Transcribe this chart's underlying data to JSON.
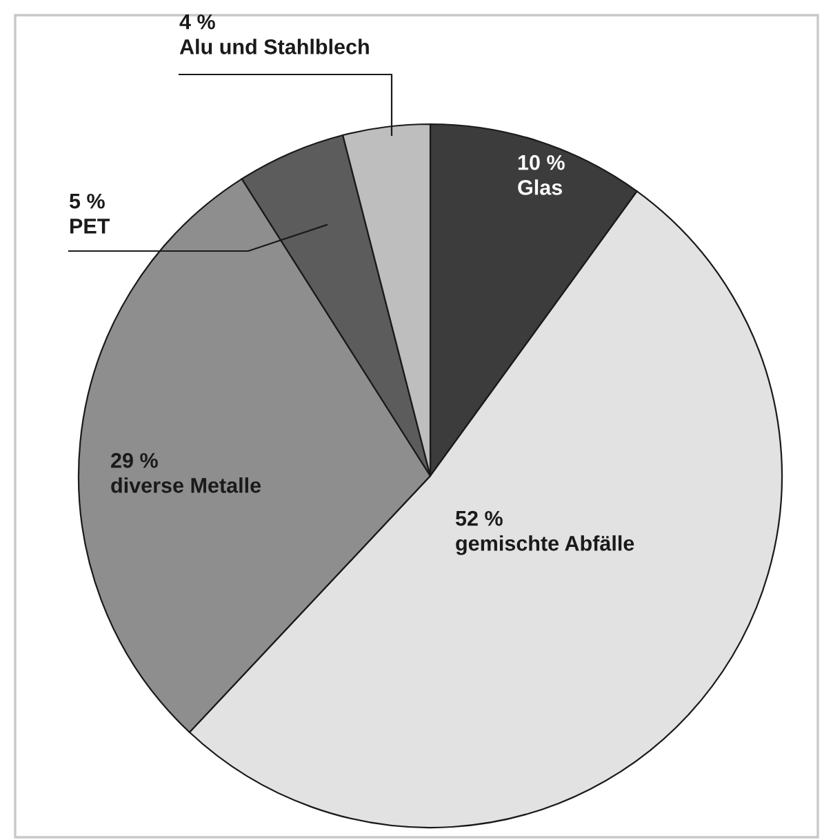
{
  "chart_data": {
    "type": "pie",
    "categories": [
      "Glas",
      "gemischte Abfälle",
      "diverse Metalle",
      "PET",
      "Alu und Stahlblech"
    ],
    "values": [
      10,
      52,
      29,
      5,
      4
    ],
    "value_labels": [
      "10 %",
      "52 %",
      "29 %",
      "5 %",
      "4 %"
    ],
    "colors": [
      "#3c3c3c",
      "#e2e2e2",
      "#8e8e8e",
      "#5c5c5c",
      "#bebebe"
    ],
    "legend": false
  }
}
